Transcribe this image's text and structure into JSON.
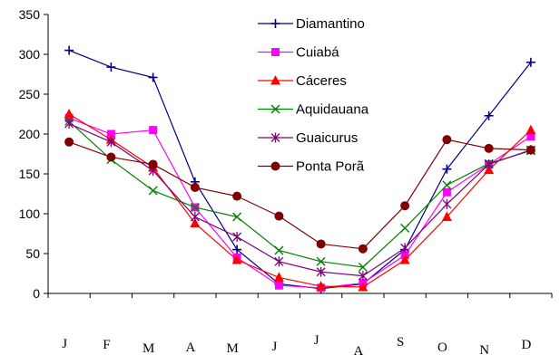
{
  "chart_data": {
    "type": "line",
    "title": "",
    "xlabel": "",
    "ylabel": "",
    "ylim": [
      0,
      350
    ],
    "yticks": [
      0,
      50,
      100,
      150,
      200,
      250,
      300,
      350
    ],
    "grid": false,
    "legend_position": "top-center",
    "categories": [
      "J",
      "F",
      "M",
      "A",
      "M",
      "J",
      "J",
      "A",
      "S",
      "O",
      "N",
      "D"
    ],
    "series": [
      {
        "name": "Diamantino",
        "color": "#000080",
        "marker": "plus",
        "values": [
          305,
          284,
          271,
          140,
          55,
          12,
          6,
          12,
          55,
          156,
          223,
          290
        ]
      },
      {
        "name": "Cuiabá",
        "color": "#ff00ff",
        "marker": "square",
        "values": [
          220,
          200,
          205,
          108,
          45,
          10,
          7,
          13,
          48,
          127,
          162,
          197
        ]
      },
      {
        "name": "Cáceres",
        "color": "#ff0000",
        "marker": "triangle",
        "values": [
          225,
          193,
          158,
          88,
          42,
          20,
          9,
          8,
          42,
          96,
          155,
          205
        ]
      },
      {
        "name": "Aquidauana",
        "color": "#008000",
        "marker": "x",
        "values": [
          216,
          168,
          129,
          108,
          96,
          54,
          40,
          33,
          82,
          136,
          163,
          179
        ]
      },
      {
        "name": "Guaicurus",
        "color": "#800080",
        "marker": "star",
        "values": [
          213,
          190,
          154,
          96,
          71,
          40,
          27,
          22,
          57,
          112,
          162,
          180
        ]
      },
      {
        "name": "Ponta Porã",
        "color": "#800000",
        "marker": "circle",
        "values": [
          190,
          171,
          162,
          133,
          122,
          97,
          62,
          56,
          110,
          193,
          182,
          180
        ]
      }
    ]
  }
}
